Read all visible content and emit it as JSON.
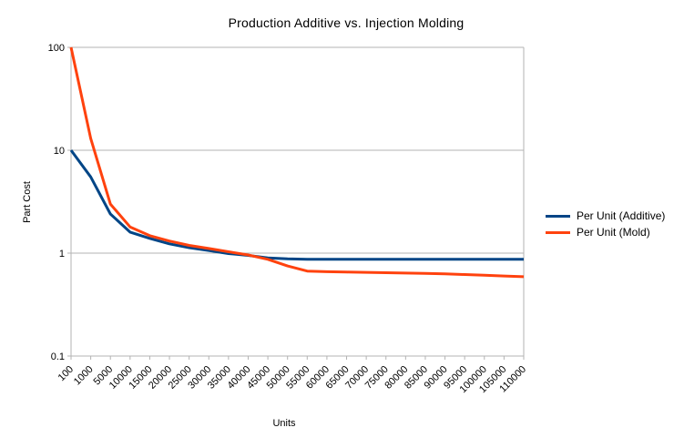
{
  "chart_data": {
    "type": "line",
    "title": "Production Additive vs. Injection Molding",
    "xlabel": "Units",
    "ylabel": "Part Cost",
    "y_scale": "log",
    "ylim": [
      0.1,
      100
    ],
    "y_tick_labels": [
      "100",
      "10",
      "1",
      "0.1"
    ],
    "grid": true,
    "legend_position": "right",
    "x_tick_rotation_deg": 45,
    "categories": [
      100,
      1000,
      5000,
      10000,
      15000,
      20000,
      25000,
      30000,
      35000,
      40000,
      45000,
      50000,
      55000,
      60000,
      65000,
      70000,
      75000,
      80000,
      85000,
      90000,
      95000,
      100000,
      105000,
      110000
    ],
    "series": [
      {
        "name": "Per Unit (Additive)",
        "color": "#004586",
        "values": [
          10,
          5.5,
          2.4,
          1.6,
          1.39,
          1.23,
          1.13,
          1.06,
          0.99,
          0.95,
          0.9,
          0.88,
          0.87,
          0.87,
          0.87,
          0.87,
          0.87,
          0.87,
          0.87,
          0.87,
          0.87,
          0.87,
          0.87,
          0.87
        ]
      },
      {
        "name": "Per Unit (Mold)",
        "color": "#ff420e",
        "values": [
          100,
          13,
          3,
          1.8,
          1.48,
          1.31,
          1.19,
          1.11,
          1.03,
          0.96,
          0.87,
          0.75,
          0.67,
          0.66,
          0.655,
          0.65,
          0.645,
          0.64,
          0.635,
          0.63,
          0.62,
          0.61,
          0.6,
          0.59
        ]
      }
    ]
  },
  "colors": {
    "background": "#ffffff",
    "grid": "#b3b3b3",
    "axis": "#b3b3b3",
    "text": "#000000"
  }
}
